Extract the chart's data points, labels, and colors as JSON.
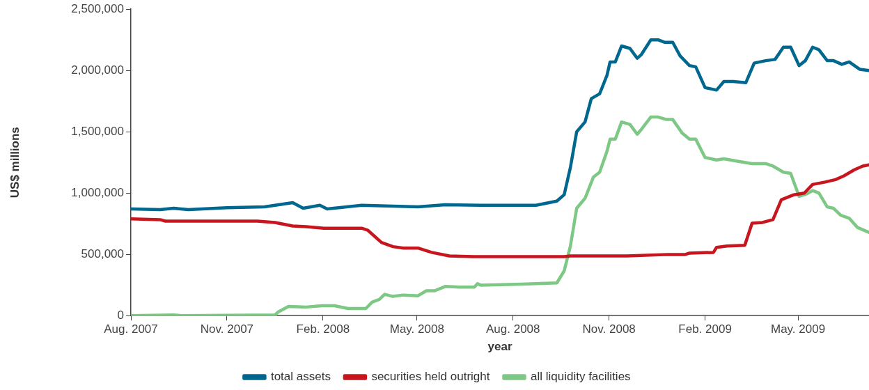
{
  "chart_data": {
    "type": "line",
    "xlabel": "year",
    "ylabel": "US$ millions",
    "grid": false,
    "legend": "bottom",
    "marker": "none",
    "line_style": "solid",
    "xlim": [
      "2007-08-01",
      "2009-07-08"
    ],
    "xticks": [
      {
        "value": "2007-08-01",
        "label": "Aug. 2007"
      },
      {
        "value": "2007-11-01",
        "label": "Nov. 2007"
      },
      {
        "value": "2008-02-01",
        "label": "Feb. 2008"
      },
      {
        "value": "2008-05-01",
        "label": "May. 2008"
      },
      {
        "value": "2008-08-01",
        "label": "Aug. 2008"
      },
      {
        "value": "2008-11-01",
        "label": "Nov. 2008"
      },
      {
        "value": "2009-02-01",
        "label": "Feb. 2009"
      },
      {
        "value": "2009-05-01",
        "label": "May. 2009"
      }
    ],
    "ylim": [
      0,
      2500000
    ],
    "yticks": [
      {
        "value": 0,
        "label": "0"
      },
      {
        "value": 500000,
        "label": "500,000"
      },
      {
        "value": 1000000,
        "label": "1,000,000"
      },
      {
        "value": 1500000,
        "label": "1,500,000"
      },
      {
        "value": 2000000,
        "label": "2,000,000"
      },
      {
        "value": 2500000,
        "label": "2,500,000"
      }
    ],
    "series": [
      {
        "name": "total assets",
        "color": "#00688f",
        "x": [
          "2007-08-01",
          "2007-08-29",
          "2007-09-11",
          "2007-09-25",
          "2007-11-01",
          "2007-12-07",
          "2008-01-03",
          "2008-01-13",
          "2008-01-29",
          "2008-02-05",
          "2008-03-09",
          "2008-05-02",
          "2008-05-28",
          "2008-07-01",
          "2008-08-03",
          "2008-08-23",
          "2008-09-12",
          "2008-09-19",
          "2008-09-25",
          "2008-10-01",
          "2008-10-09",
          "2008-10-15",
          "2008-10-23",
          "2008-10-30",
          "2008-11-02",
          "2008-11-07",
          "2008-11-13",
          "2008-11-21",
          "2008-11-28",
          "2008-12-02",
          "2008-12-11",
          "2008-12-18",
          "2008-12-24",
          "2009-01-01",
          "2009-01-08",
          "2009-01-17",
          "2009-01-23",
          "2009-02-01",
          "2009-02-12",
          "2009-02-19",
          "2009-02-28",
          "2009-03-12",
          "2009-03-20",
          "2009-03-31",
          "2009-04-09",
          "2009-04-17",
          "2009-04-24",
          "2009-05-02",
          "2009-05-08",
          "2009-05-15",
          "2009-05-21",
          "2009-05-29",
          "2009-06-04",
          "2009-06-12",
          "2009-06-19",
          "2009-06-29",
          "2009-07-08"
        ],
        "values": [
          870000,
          865000,
          876000,
          865000,
          880000,
          888000,
          922000,
          876000,
          900000,
          870000,
          900000,
          887000,
          905000,
          900000,
          900000,
          900000,
          934000,
          986000,
          1210000,
          1500000,
          1580000,
          1770000,
          1810000,
          1960000,
          2070000,
          2070000,
          2200000,
          2180000,
          2100000,
          2130000,
          2250000,
          2250000,
          2230000,
          2230000,
          2120000,
          2040000,
          2030000,
          1860000,
          1840000,
          1910000,
          1910000,
          1900000,
          2060000,
          2080000,
          2090000,
          2190000,
          2190000,
          2040000,
          2080000,
          2190000,
          2170000,
          2080000,
          2080000,
          2050000,
          2070000,
          2010000,
          2000000
        ]
      },
      {
        "name": "securities held outright",
        "color": "#c8161e",
        "x": [
          "2007-08-01",
          "2007-08-29",
          "2007-09-03",
          "2007-11-30",
          "2007-12-17",
          "2008-01-03",
          "2008-01-16",
          "2008-02-02",
          "2008-03-09",
          "2008-03-15",
          "2008-03-28",
          "2008-04-08",
          "2008-04-18",
          "2008-05-02",
          "2008-05-15",
          "2008-06-01",
          "2008-06-24",
          "2008-09-19",
          "2008-09-25",
          "2008-11-18",
          "2008-12-28",
          "2009-01-13",
          "2009-01-17",
          "2009-02-09",
          "2009-02-12",
          "2009-02-22",
          "2009-03-11",
          "2009-03-18",
          "2009-03-28",
          "2009-04-07",
          "2009-04-15",
          "2009-04-27",
          "2009-05-07",
          "2009-05-15",
          "2009-05-27",
          "2009-06-06",
          "2009-06-14",
          "2009-06-24",
          "2009-07-02",
          "2009-07-08"
        ],
        "values": [
          789000,
          783000,
          771000,
          771000,
          760000,
          731000,
          725000,
          713000,
          713000,
          696000,
          597000,
          563000,
          551000,
          551000,
          516000,
          487000,
          481000,
          481000,
          487000,
          487000,
          499000,
          499000,
          510000,
          516000,
          557000,
          568000,
          574000,
          754000,
          760000,
          783000,
          945000,
          986000,
          1000000,
          1070000,
          1090000,
          1110000,
          1140000,
          1190000,
          1220000,
          1230000
        ]
      },
      {
        "name": "all liquidity facilities",
        "color": "#7dc884",
        "x": [
          "2007-08-01",
          "2007-09-11",
          "2007-09-18",
          "2007-12-17",
          "2007-12-20",
          "2007-12-30",
          "2008-01-16",
          "2008-01-31",
          "2008-02-12",
          "2008-02-25",
          "2008-03-13",
          "2008-03-19",
          "2008-03-26",
          "2008-03-31",
          "2008-04-08",
          "2008-04-18",
          "2008-05-02",
          "2008-05-10",
          "2008-05-18",
          "2008-05-28",
          "2008-06-11",
          "2008-06-25",
          "2008-06-28",
          "2008-07-01",
          "2008-08-03",
          "2008-08-23",
          "2008-09-12",
          "2008-09-19",
          "2008-09-25",
          "2008-10-01",
          "2008-10-09",
          "2008-10-17",
          "2008-10-23",
          "2008-10-30",
          "2008-11-02",
          "2008-11-07",
          "2008-11-13",
          "2008-11-21",
          "2008-11-28",
          "2008-12-02",
          "2008-12-11",
          "2008-12-18",
          "2008-12-26",
          "2009-01-01",
          "2009-01-10",
          "2009-01-17",
          "2009-01-23",
          "2009-02-01",
          "2009-02-12",
          "2009-02-19",
          "2009-03-04",
          "2009-03-18",
          "2009-03-31",
          "2009-04-07",
          "2009-04-17",
          "2009-04-24",
          "2009-05-02",
          "2009-05-09",
          "2009-05-15",
          "2009-05-21",
          "2009-05-29",
          "2009-06-04",
          "2009-06-11",
          "2009-06-19",
          "2009-06-27",
          "2009-07-08"
        ],
        "values": [
          0,
          6000,
          0,
          6000,
          29000,
          75000,
          70000,
          81000,
          81000,
          58000,
          58000,
          110000,
          133000,
          174000,
          157000,
          168000,
          162000,
          203000,
          203000,
          238000,
          232000,
          232000,
          261000,
          249000,
          255000,
          261000,
          267000,
          365000,
          568000,
          876000,
          957000,
          1130000,
          1170000,
          1340000,
          1440000,
          1440000,
          1580000,
          1560000,
          1480000,
          1520000,
          1620000,
          1620000,
          1600000,
          1600000,
          1490000,
          1440000,
          1440000,
          1290000,
          1270000,
          1280000,
          1260000,
          1240000,
          1240000,
          1220000,
          1170000,
          1160000,
          974000,
          992000,
          1020000,
          1000000,
          887000,
          876000,
          818000,
          795000,
          719000,
          679000
        ]
      }
    ]
  }
}
